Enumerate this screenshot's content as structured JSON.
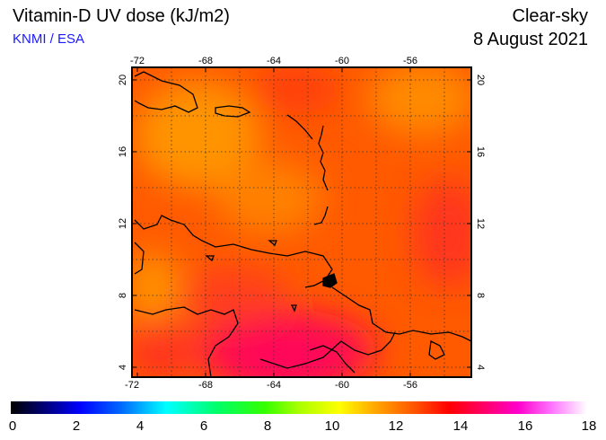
{
  "header": {
    "title": "Vitamin-D UV dose (kJ/m2)",
    "org": "KNMI / ESA",
    "condition": "Clear-sky",
    "date": "8 August 2021"
  },
  "map": {
    "lon_ticks": [
      "-72",
      "-68",
      "-64",
      "-60",
      "-56"
    ],
    "lat_ticks": [
      "20",
      "16",
      "12",
      "8",
      "4"
    ],
    "lon_range": [
      -72,
      -52
    ],
    "lat_range": [
      3.3,
      20.5
    ]
  },
  "colorbar": {
    "labels": [
      "0",
      "2",
      "4",
      "6",
      "8",
      "10",
      "12",
      "14",
      "16",
      "18"
    ]
  },
  "colors": {
    "base": "#ff5a00",
    "high": "#ff2030",
    "peak": "#ff0066",
    "low": "#ff9a00"
  }
}
